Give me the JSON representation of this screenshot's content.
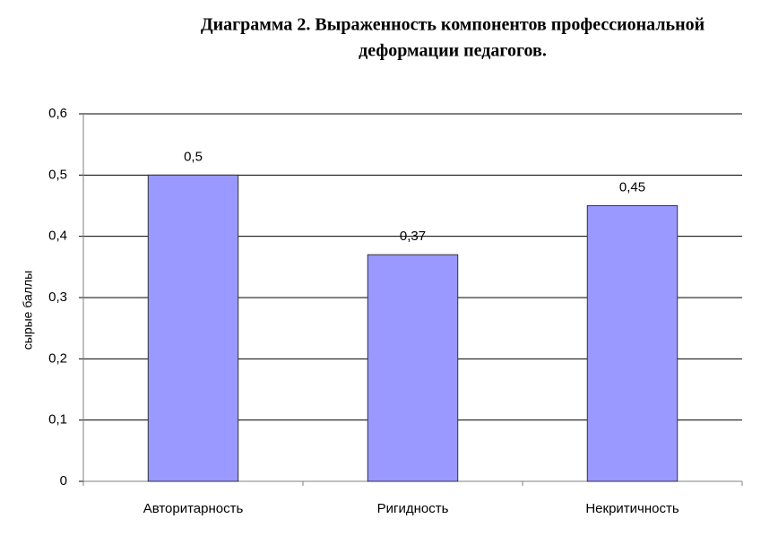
{
  "chart_data": {
    "type": "bar",
    "title": [
      "Диаграмма 2. Выраженность компонентов профессиональной",
      "деформации педагогов."
    ],
    "y_label": "сырые баллы",
    "categories": [
      "Авторитарность",
      "Ригидность",
      "Некритичность"
    ],
    "values": [
      0.5,
      0.37,
      0.45
    ],
    "value_labels": [
      "0,5",
      "0,37",
      "0,45"
    ],
    "color": "#9999ff",
    "ylim": [
      0,
      0.6
    ],
    "yticks": [
      0,
      {
        "value": 0.1,
        "label": "0,1"
      },
      {
        "value": 0.2,
        "label": "0,2"
      },
      {
        "value": 0.3,
        "label": "0,3"
      },
      {
        "value": 0.4,
        "label": "0,4"
      },
      {
        "value": 0.5,
        "label": "0,5"
      },
      {
        "value": 0.6,
        "label": "0,6"
      }
    ],
    "grid": true
  }
}
